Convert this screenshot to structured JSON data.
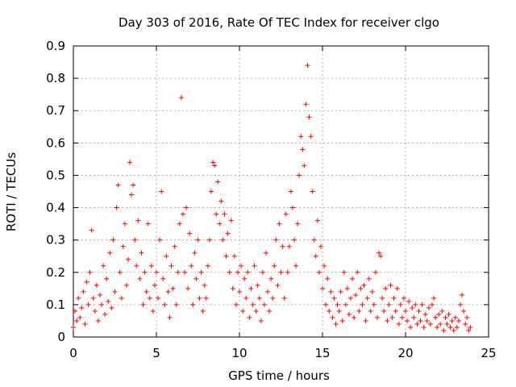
{
  "chart_data": {
    "type": "scatter",
    "title": "Day 303 of 2016, Rate Of TEC Index for receiver clgo",
    "xlabel": "GPS time / hours",
    "ylabel": "ROTI / TECUs",
    "xlim": [
      0,
      25
    ],
    "ylim": [
      0,
      0.9
    ],
    "x_ticks": [
      0,
      5,
      10,
      15,
      20,
      25
    ],
    "x_tick_labels": [
      "0",
      "5",
      "10",
      "15",
      "20",
      "25"
    ],
    "y_ticks": [
      0,
      0.1,
      0.2,
      0.3,
      0.4,
      0.5,
      0.6,
      0.7,
      0.8,
      0.9
    ],
    "y_tick_labels": [
      "0",
      "0.1",
      "0.2",
      "0.3",
      "0.4",
      "0.5",
      "0.6",
      "0.7",
      "0.8",
      "0.9"
    ],
    "grid": true,
    "marker": "+",
    "color": "#ff0000",
    "series": [
      {
        "points": [
          [
            0.0,
            0.03
          ],
          [
            0.1,
            0.08
          ],
          [
            0.2,
            0.05
          ],
          [
            0.3,
            0.12
          ],
          [
            0.4,
            0.06
          ],
          [
            0.5,
            0.09
          ],
          [
            0.6,
            0.14
          ],
          [
            0.7,
            0.04
          ],
          [
            0.8,
            0.17
          ],
          [
            0.9,
            0.1
          ],
          [
            1.0,
            0.2
          ],
          [
            1.1,
            0.33
          ],
          [
            1.2,
            0.12
          ],
          [
            1.3,
            0.08
          ],
          [
            1.4,
            0.16
          ],
          [
            1.5,
            0.05
          ],
          [
            1.6,
            0.13
          ],
          [
            1.7,
            0.1
          ],
          [
            1.8,
            0.22
          ],
          [
            1.9,
            0.07
          ],
          [
            2.0,
            0.18
          ],
          [
            2.1,
            0.11
          ],
          [
            2.2,
            0.26
          ],
          [
            2.3,
            0.09
          ],
          [
            2.4,
            0.3
          ],
          [
            2.5,
            0.14
          ],
          [
            2.6,
            0.4
          ],
          [
            2.7,
            0.47
          ],
          [
            2.8,
            0.2
          ],
          [
            2.9,
            0.12
          ],
          [
            3.0,
            0.28
          ],
          [
            3.1,
            0.35
          ],
          [
            3.2,
            0.16
          ],
          [
            3.3,
            0.24
          ],
          [
            3.4,
            0.54
          ],
          [
            3.5,
            0.44
          ],
          [
            3.6,
            0.47
          ],
          [
            3.7,
            0.3
          ],
          [
            3.8,
            0.22
          ],
          [
            3.9,
            0.36
          ],
          [
            4.0,
            0.18
          ],
          [
            4.1,
            0.26
          ],
          [
            4.2,
            0.1
          ],
          [
            4.3,
            0.2
          ],
          [
            4.4,
            0.14
          ],
          [
            4.5,
            0.35
          ],
          [
            4.6,
            0.12
          ],
          [
            4.7,
            0.22
          ],
          [
            4.8,
            0.08
          ],
          [
            4.9,
            0.16
          ],
          [
            5.0,
            0.2
          ],
          [
            5.1,
            0.12
          ],
          [
            5.2,
            0.3
          ],
          [
            5.3,
            0.45
          ],
          [
            5.4,
            0.18
          ],
          [
            5.5,
            0.1
          ],
          [
            5.6,
            0.25
          ],
          [
            5.7,
            0.14
          ],
          [
            5.8,
            0.06
          ],
          [
            5.9,
            0.22
          ],
          [
            6.0,
            0.15
          ],
          [
            6.1,
            0.28
          ],
          [
            6.2,
            0.1
          ],
          [
            6.3,
            0.2
          ],
          [
            6.4,
            0.35
          ],
          [
            6.5,
            0.74
          ],
          [
            6.6,
            0.38
          ],
          [
            6.7,
            0.2
          ],
          [
            6.8,
            0.4
          ],
          [
            6.9,
            0.15
          ],
          [
            7.0,
            0.32
          ],
          [
            7.1,
            0.22
          ],
          [
            7.2,
            0.1
          ],
          [
            7.3,
            0.26
          ],
          [
            7.4,
            0.18
          ],
          [
            7.5,
            0.3
          ],
          [
            7.6,
            0.12
          ],
          [
            7.7,
            0.2
          ],
          [
            7.8,
            0.08
          ],
          [
            7.9,
            0.16
          ],
          [
            8.0,
            0.12
          ],
          [
            8.1,
            0.22
          ],
          [
            8.2,
            0.3
          ],
          [
            8.3,
            0.45
          ],
          [
            8.4,
            0.54
          ],
          [
            8.5,
            0.53
          ],
          [
            8.6,
            0.38
          ],
          [
            8.7,
            0.48
          ],
          [
            8.8,
            0.35
          ],
          [
            8.9,
            0.42
          ],
          [
            9.0,
            0.3
          ],
          [
            9.1,
            0.38
          ],
          [
            9.2,
            0.25
          ],
          [
            9.3,
            0.32
          ],
          [
            9.4,
            0.2
          ],
          [
            9.5,
            0.36
          ],
          [
            9.6,
            0.15
          ],
          [
            9.7,
            0.25
          ],
          [
            9.8,
            0.1
          ],
          [
            9.9,
            0.2
          ],
          [
            10.0,
            0.14
          ],
          [
            10.1,
            0.22
          ],
          [
            10.2,
            0.08
          ],
          [
            10.3,
            0.18
          ],
          [
            10.4,
            0.12
          ],
          [
            10.5,
            0.2
          ],
          [
            10.6,
            0.06
          ],
          [
            10.7,
            0.15
          ],
          [
            10.8,
            0.1
          ],
          [
            10.9,
            0.22
          ],
          [
            11.0,
            0.08
          ],
          [
            11.1,
            0.16
          ],
          [
            11.2,
            0.12
          ],
          [
            11.3,
            0.05
          ],
          [
            11.4,
            0.2
          ],
          [
            11.5,
            0.1
          ],
          [
            11.6,
            0.26
          ],
          [
            11.7,
            0.14
          ],
          [
            11.8,
            0.08
          ],
          [
            11.9,
            0.18
          ],
          [
            12.0,
            0.12
          ],
          [
            12.1,
            0.22
          ],
          [
            12.2,
            0.3
          ],
          [
            12.3,
            0.16
          ],
          [
            12.4,
            0.35
          ],
          [
            12.5,
            0.2
          ],
          [
            12.6,
            0.28
          ],
          [
            12.7,
            0.12
          ],
          [
            12.8,
            0.38
          ],
          [
            12.9,
            0.2
          ],
          [
            13.0,
            0.28
          ],
          [
            13.1,
            0.45
          ],
          [
            13.2,
            0.4
          ],
          [
            13.3,
            0.3
          ],
          [
            13.4,
            0.22
          ],
          [
            13.5,
            0.35
          ],
          [
            13.6,
            0.5
          ],
          [
            13.7,
            0.62
          ],
          [
            13.8,
            0.58
          ],
          [
            13.9,
            0.53
          ],
          [
            14.0,
            0.72
          ],
          [
            14.1,
            0.84
          ],
          [
            14.2,
            0.68
          ],
          [
            14.3,
            0.62
          ],
          [
            14.4,
            0.45
          ],
          [
            14.5,
            0.3
          ],
          [
            14.6,
            0.25
          ],
          [
            14.7,
            0.36
          ],
          [
            14.8,
            0.2
          ],
          [
            14.9,
            0.28
          ],
          [
            15.0,
            0.15
          ],
          [
            15.1,
            0.22
          ],
          [
            15.2,
            0.1
          ],
          [
            15.3,
            0.18
          ],
          [
            15.4,
            0.08
          ],
          [
            15.5,
            0.14
          ],
          [
            15.6,
            0.06
          ],
          [
            15.7,
            0.12
          ],
          [
            15.8,
            0.04
          ],
          [
            15.9,
            0.1
          ],
          [
            16.0,
            0.08
          ],
          [
            16.1,
            0.14
          ],
          [
            16.2,
            0.05
          ],
          [
            16.3,
            0.2
          ],
          [
            16.4,
            0.1
          ],
          [
            16.5,
            0.15
          ],
          [
            16.6,
            0.07
          ],
          [
            16.7,
            0.12
          ],
          [
            16.8,
            0.18
          ],
          [
            16.9,
            0.06
          ],
          [
            17.0,
            0.13
          ],
          [
            17.1,
            0.2
          ],
          [
            17.2,
            0.08
          ],
          [
            17.3,
            0.15
          ],
          [
            17.4,
            0.1
          ],
          [
            17.5,
            0.16
          ],
          [
            17.6,
            0.05
          ],
          [
            17.7,
            0.12
          ],
          [
            17.8,
            0.18
          ],
          [
            17.9,
            0.08
          ],
          [
            18.0,
            0.14
          ],
          [
            18.1,
            0.1
          ],
          [
            18.2,
            0.2
          ],
          [
            18.3,
            0.06
          ],
          [
            18.4,
            0.26
          ],
          [
            18.5,
            0.25
          ],
          [
            18.6,
            0.12
          ],
          [
            18.7,
            0.08
          ],
          [
            18.8,
            0.15
          ],
          [
            18.9,
            0.05
          ],
          [
            19.0,
            0.1
          ],
          [
            19.1,
            0.16
          ],
          [
            19.2,
            0.06
          ],
          [
            19.3,
            0.12
          ],
          [
            19.4,
            0.08
          ],
          [
            19.5,
            0.15
          ],
          [
            19.6,
            0.04
          ],
          [
            19.7,
            0.1
          ],
          [
            19.8,
            0.06
          ],
          [
            19.9,
            0.12
          ],
          [
            20.0,
            0.08
          ],
          [
            20.1,
            0.05
          ],
          [
            20.2,
            0.11
          ],
          [
            20.3,
            0.03
          ],
          [
            20.4,
            0.09
          ],
          [
            20.5,
            0.06
          ],
          [
            20.6,
            0.1
          ],
          [
            20.7,
            0.04
          ],
          [
            20.8,
            0.08
          ],
          [
            20.9,
            0.05
          ],
          [
            21.0,
            0.1
          ],
          [
            21.1,
            0.03
          ],
          [
            21.2,
            0.07
          ],
          [
            21.3,
            0.05
          ],
          [
            21.4,
            0.09
          ],
          [
            21.5,
            0.04
          ],
          [
            21.6,
            0.1
          ],
          [
            21.7,
            0.12
          ],
          [
            21.8,
            0.06
          ],
          [
            21.9,
            0.03
          ],
          [
            22.0,
            0.07
          ],
          [
            22.1,
            0.04
          ],
          [
            22.2,
            0.08
          ],
          [
            22.3,
            0.02
          ],
          [
            22.4,
            0.06
          ],
          [
            22.5,
            0.04
          ],
          [
            22.6,
            0.07
          ],
          [
            22.7,
            0.03
          ],
          [
            22.8,
            0.05
          ],
          [
            22.9,
            0.02
          ],
          [
            23.0,
            0.06
          ],
          [
            23.1,
            0.03
          ],
          [
            23.2,
            0.05
          ],
          [
            23.3,
            0.1
          ],
          [
            23.4,
            0.13
          ],
          [
            23.5,
            0.08
          ],
          [
            23.6,
            0.04
          ],
          [
            23.7,
            0.06
          ],
          [
            23.8,
            0.02
          ],
          [
            23.9,
            0.03
          ]
        ]
      }
    ]
  }
}
